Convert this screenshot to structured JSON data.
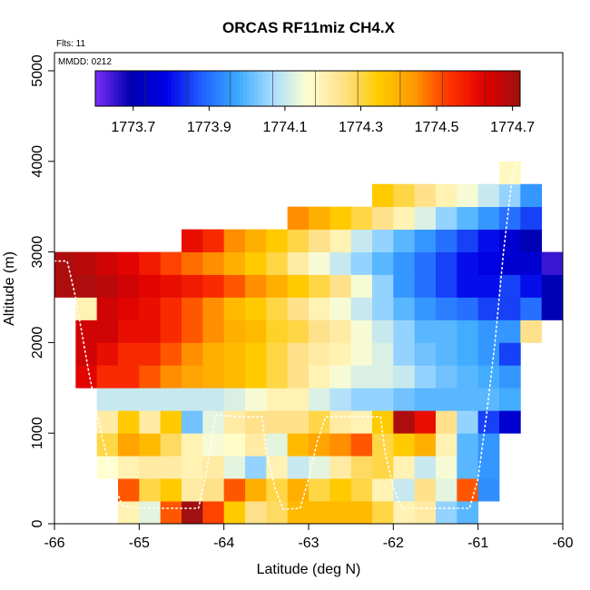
{
  "chart_data": {
    "type": "heatmap",
    "title": "ORCAS RF11miz CH4.X",
    "annotations": {
      "flights": "Flts: 11",
      "date": "MMDD: 0212"
    },
    "xlabel": "Latitude (deg N)",
    "ylabel": "Altitude (m)",
    "xlim": [
      -66,
      -60
    ],
    "ylim": [
      0,
      5200
    ],
    "xticks": [
      -66,
      -65,
      -64,
      -63,
      -62,
      -61,
      -60
    ],
    "xtick_labels": [
      "-66",
      "-65",
      "-64",
      "-63",
      "-62",
      "-61",
      "-60"
    ],
    "yticks": [
      0,
      1000,
      2000,
      3000,
      4000,
      5000
    ],
    "ytick_labels": [
      "0",
      "1000",
      "2000",
      "3000",
      "4000",
      "5000"
    ],
    "colorbar": {
      "min": 1773.6,
      "max": 1774.72,
      "ticks": [
        1773.7,
        1773.9,
        1774.1,
        1774.3,
        1774.5,
        1774.7
      ],
      "tick_labels": [
        "1773.7",
        "1773.9",
        "1774.1",
        "1774.3",
        "1774.5",
        "1774.7"
      ],
      "colors": [
        "#7b2ff7",
        "#0000b0",
        "#0000e6",
        "#2060ff",
        "#3aa8ff",
        "#a8dcff",
        "#ffffd0",
        "#ffe08a",
        "#ffcc00",
        "#ff9900",
        "#ff3300",
        "#e00000",
        "#a01010"
      ]
    },
    "cell_width_deg": 0.25,
    "cell_height_m": 250,
    "rows": [
      {
        "alt_bottom": 0,
        "lat_start": -65.25,
        "values": [
          1774.2,
          1774.13,
          1774.5,
          1774.72,
          1774.52,
          1774.35,
          1774.25,
          1774.28,
          1774.38,
          1774.38,
          1774.38,
          1774.38,
          1774.3,
          1774.2,
          1774.22,
          1774.05,
          1774.0
        ]
      },
      {
        "alt_bottom": 250,
        "lat_start": -65.25,
        "values": [
          1774.5,
          1774.3,
          1774.35,
          1774.22,
          1774.25,
          1774.5,
          1774.4,
          1774.3,
          1774.4,
          1774.3,
          1774.35,
          1774.3,
          1774.2,
          1774.1,
          1774.25,
          1774.13,
          1774.5,
          1773.94
        ]
      },
      {
        "alt_bottom": 500,
        "lat_start": -65.5,
        "values": [
          1774.16,
          1774.2,
          1774.22,
          1774.22,
          1774.2,
          1774.22,
          1774.13,
          1774.05,
          1774.2,
          1774.1,
          1774.13,
          1774.22,
          1774.28,
          1774.3,
          1774.2,
          1774.1,
          1774.15,
          1774.0,
          1773.95
        ]
      },
      {
        "alt_bottom": 750,
        "lat_start": -65.5,
        "values": [
          1774.3,
          1774.42,
          1774.38,
          1774.28,
          1774.2,
          1774.15,
          1774.17,
          1774.22,
          1774.13,
          1774.38,
          1774.42,
          1774.45,
          1774.5,
          1774.3,
          1774.35,
          1774.4,
          1774.2,
          1774.0,
          1773.95
        ]
      },
      {
        "alt_bottom": 1000,
        "lat_start": -65.5,
        "values": [
          1774.22,
          1774.35,
          1774.22,
          1774.35,
          1774.02,
          1774.13,
          1774.22,
          1774.25,
          1774.25,
          1774.25,
          1774.3,
          1774.22,
          1774.2,
          1774.35,
          1774.7,
          1774.6,
          1774.25,
          1774.05,
          1773.85,
          1773.75
        ]
      },
      {
        "alt_bottom": 1250,
        "lat_start": -65.5,
        "values": [
          1774.1,
          1774.1,
          1774.1,
          1774.1,
          1774.1,
          1774.1,
          1774.12,
          1774.15,
          1774.2,
          1774.2,
          1774.12,
          1774.08,
          1774.05,
          1774.05,
          1774.02,
          1774.0,
          1774.0,
          1774.0,
          1774.0,
          1773.98
        ]
      },
      {
        "alt_bottom": 1500,
        "lat_start": -65.75,
        "values": [
          1774.62,
          1774.55,
          1774.55,
          1774.5,
          1774.45,
          1774.42,
          1774.4,
          1774.38,
          1774.35,
          1774.3,
          1774.25,
          1774.2,
          1774.15,
          1774.12,
          1774.12,
          1774.1,
          1774.05,
          1774.02,
          1774.0,
          1773.98,
          1773.95
        ]
      },
      {
        "alt_bottom": 1750,
        "lat_start": -65.75,
        "values": [
          1774.65,
          1774.6,
          1774.55,
          1774.55,
          1774.5,
          1774.45,
          1774.4,
          1774.38,
          1774.35,
          1774.3,
          1774.25,
          1774.22,
          1774.2,
          1774.15,
          1774.12,
          1774.05,
          1774.02,
          1774.0,
          1773.98,
          1773.95,
          1773.85
        ]
      },
      {
        "alt_bottom": 2000,
        "lat_start": -65.75,
        "values": [
          1774.65,
          1774.65,
          1774.6,
          1774.6,
          1774.55,
          1774.5,
          1774.45,
          1774.4,
          1774.38,
          1774.32,
          1774.3,
          1774.25,
          1774.22,
          1774.15,
          1774.1,
          1774.05,
          1774.0,
          1774.0,
          1773.98,
          1773.95,
          1773.95,
          1774.25
        ]
      },
      {
        "alt_bottom": 2250,
        "lat_start": -65.75,
        "values": [
          1774.2,
          1774.65,
          1774.62,
          1774.6,
          1774.55,
          1774.5,
          1774.45,
          1774.38,
          1774.35,
          1774.3,
          1774.25,
          1774.2,
          1774.15,
          1774.1,
          1774.05,
          1774.0,
          1773.95,
          1773.92,
          1773.9,
          1773.85,
          1773.85,
          1773.9,
          1773.7
        ]
      },
      {
        "alt_bottom": 2500,
        "lat_start": -66.0,
        "values": [
          1774.7,
          1774.7,
          1774.68,
          1774.65,
          1774.62,
          1774.6,
          1774.58,
          1774.55,
          1774.5,
          1774.45,
          1774.4,
          1774.35,
          1774.3,
          1774.25,
          1774.15,
          1774.05,
          1773.95,
          1773.9,
          1773.85,
          1773.8,
          1773.8,
          1773.85,
          1773.8,
          1773.7
        ]
      },
      {
        "alt_bottom": 2750,
        "lat_start": -66.0,
        "values": [
          1774.7,
          1774.68,
          1774.65,
          1774.62,
          1774.58,
          1774.52,
          1774.48,
          1774.45,
          1774.4,
          1774.35,
          1774.3,
          1774.22,
          1774.15,
          1774.1,
          1774.05,
          1774.0,
          1773.95,
          1773.9,
          1773.85,
          1773.8,
          1773.78,
          1773.75,
          1773.75,
          1773.65
        ]
      },
      {
        "alt_bottom": 3000,
        "lat_start": -64.5,
        "values": [
          1774.6,
          1774.55,
          1774.45,
          1774.4,
          1774.35,
          1774.3,
          1774.25,
          1774.2,
          1774.1,
          1774.05,
          1774.0,
          1773.95,
          1773.9,
          1773.85,
          1773.8,
          1773.75,
          1773.7
        ]
      },
      {
        "alt_bottom": 3250,
        "lat_start": -63.25,
        "values": [
          1774.45,
          1774.4,
          1774.35,
          1774.3,
          1774.25,
          1774.2,
          1774.12,
          1774.05,
          1774.0,
          1773.95,
          1773.9,
          1773.85
        ]
      },
      {
        "alt_bottom": 3500,
        "lat_start": -62.25,
        "values": [
          1774.35,
          1774.3,
          1774.25,
          1774.2,
          1774.15,
          1774.1,
          1774.05,
          1773.95
        ]
      },
      {
        "alt_bottom": 3750,
        "lat_start": -60.75,
        "values": [
          1774.18
        ]
      }
    ],
    "flight_track": {
      "style": "white dotted",
      "points": [
        [
          -66.0,
          2900
        ],
        [
          -65.85,
          2900
        ],
        [
          -65.75,
          2500
        ],
        [
          -65.6,
          1700
        ],
        [
          -65.45,
          1000
        ],
        [
          -65.3,
          450
        ],
        [
          -65.2,
          200
        ],
        [
          -65.0,
          170
        ],
        [
          -64.6,
          170
        ],
        [
          -64.3,
          170
        ],
        [
          -64.2,
          600
        ],
        [
          -64.1,
          1200
        ],
        [
          -63.8,
          1180
        ],
        [
          -63.55,
          1180
        ],
        [
          -63.5,
          800
        ],
        [
          -63.4,
          400
        ],
        [
          -63.3,
          160
        ],
        [
          -63.1,
          170
        ],
        [
          -63.0,
          500
        ],
        [
          -62.9,
          900
        ],
        [
          -62.8,
          1180
        ],
        [
          -62.5,
          1180
        ],
        [
          -62.15,
          1180
        ],
        [
          -62.1,
          800
        ],
        [
          -62.0,
          400
        ],
        [
          -61.9,
          170
        ],
        [
          -61.6,
          170
        ],
        [
          -61.3,
          170
        ],
        [
          -61.1,
          170
        ],
        [
          -61.0,
          500
        ],
        [
          -60.9,
          1200
        ],
        [
          -60.8,
          2000
        ],
        [
          -60.7,
          3000
        ],
        [
          -60.6,
          3800
        ],
        [
          -60.55,
          4000
        ]
      ]
    }
  }
}
